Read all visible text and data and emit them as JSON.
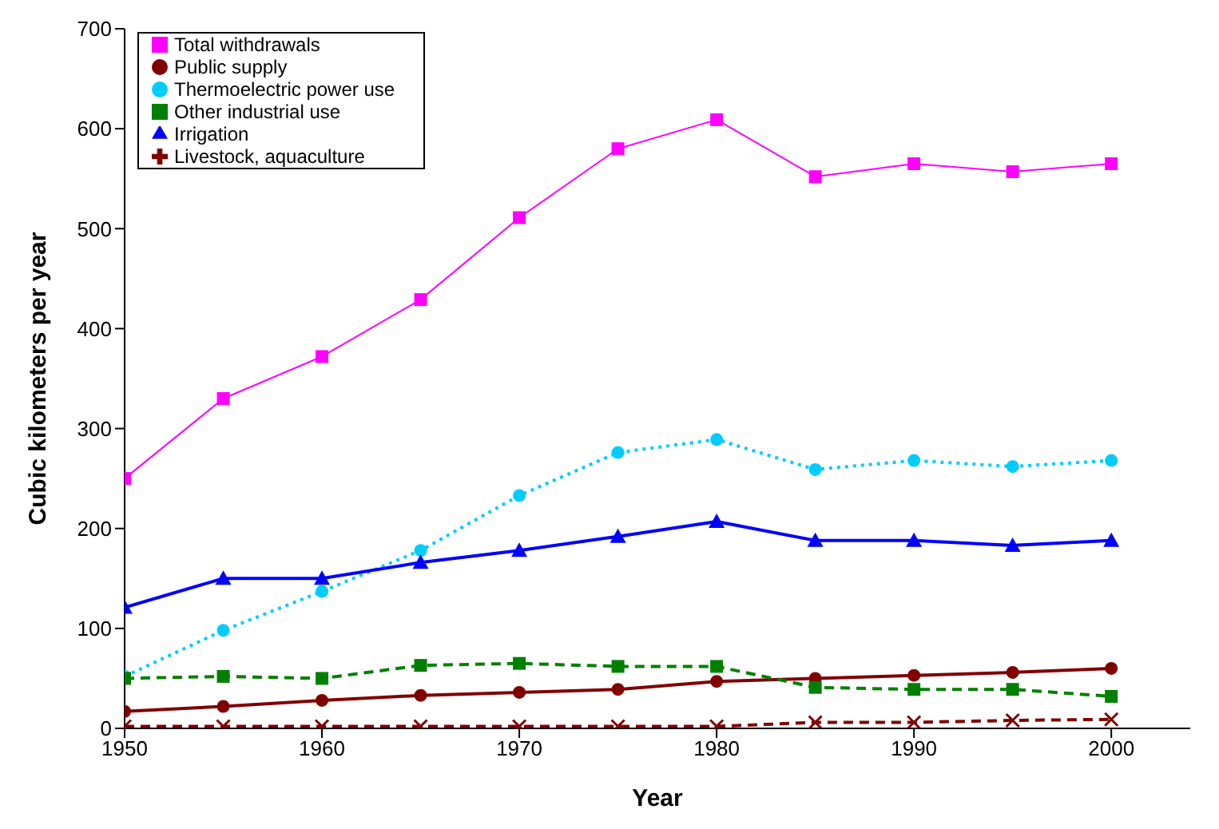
{
  "chart_data": {
    "type": "line",
    "xlabel": "Year",
    "ylabel": "Cubic kilometers per year",
    "x": [
      1950,
      1955,
      1960,
      1965,
      1970,
      1975,
      1980,
      1985,
      1990,
      1995,
      2000
    ],
    "xlim": [
      1950,
      2004
    ],
    "xticks": [
      1950,
      1960,
      1970,
      1980,
      1990,
      2000
    ],
    "ylim": [
      0,
      700
    ],
    "yticks": [
      0,
      100,
      200,
      300,
      400,
      500,
      600,
      700
    ],
    "grid": false,
    "legend": "top left",
    "series": [
      {
        "name": "Total withdrawals",
        "color": "#ff00ff",
        "marker": "square",
        "line_style": "solid",
        "values": [
          250,
          330,
          372,
          429,
          511,
          580,
          609,
          552,
          565,
          557,
          565
        ]
      },
      {
        "name": "Public supply",
        "color": "#800000",
        "marker": "circle",
        "line_style": "solid",
        "values": [
          17,
          22,
          28,
          33,
          36,
          39,
          47,
          50,
          53,
          56,
          60
        ]
      },
      {
        "name": "Thermoelectric power use",
        "color": "#00ccff",
        "marker": "circle",
        "line_style": "dotted",
        "values": [
          52,
          98,
          137,
          178,
          233,
          276,
          289,
          259,
          268,
          262,
          268
        ]
      },
      {
        "name": "Other industrial use",
        "color": "#008000",
        "marker": "square",
        "line_style": "dashed",
        "values": [
          50,
          52,
          50,
          63,
          65,
          62,
          62,
          41,
          39,
          39,
          32
        ]
      },
      {
        "name": "Irrigation",
        "color": "#0000ff",
        "marker": "triangle",
        "line_style": "solid",
        "values": [
          121,
          150,
          150,
          166,
          178,
          192,
          207,
          188,
          188,
          183,
          188
        ]
      },
      {
        "name": "Livestock, aquaculture",
        "color": "#800000",
        "marker": "cross",
        "line_style": "dashed",
        "values": [
          2,
          2,
          2,
          2,
          2,
          2,
          2,
          6,
          6,
          8,
          9
        ]
      }
    ]
  }
}
